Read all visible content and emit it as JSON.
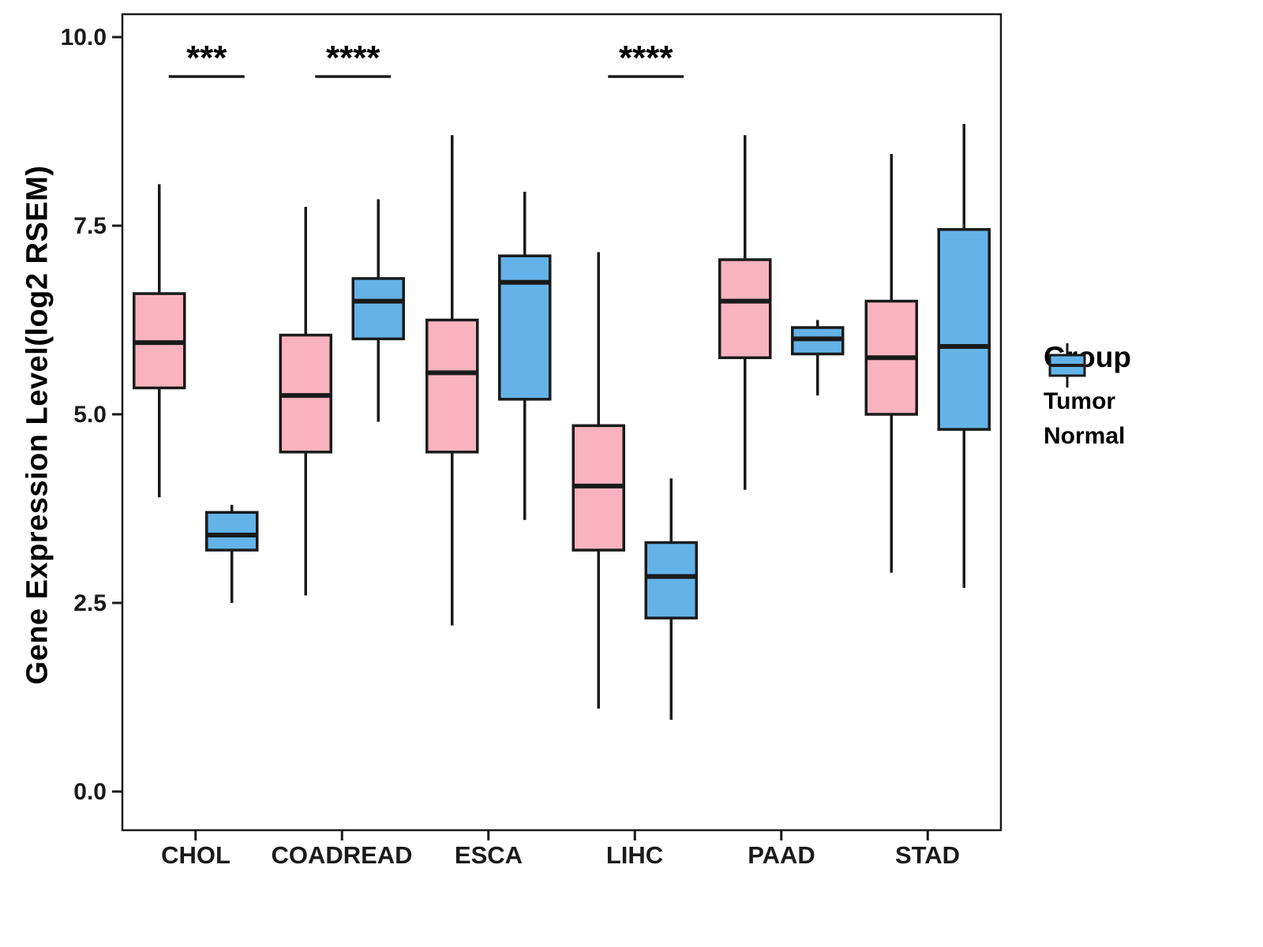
{
  "chart_data": {
    "type": "boxplot",
    "title": "",
    "xlabel": "",
    "ylabel": "Gene Expression Level(log2 RSEM)",
    "ylim": [
      0,
      10
    ],
    "grid": false,
    "y_ticks": [
      "0.0",
      "2.5",
      "5.0",
      "7.5",
      "10.0"
    ],
    "y_tick_values": [
      0,
      2.5,
      5,
      7.5,
      10
    ],
    "categories": [
      "CHOL",
      "COADREAD",
      "ESCA",
      "LIHC",
      "PAAD",
      "STAD"
    ],
    "legend": {
      "title": "Group",
      "position": "right",
      "entries": [
        {
          "label": "Tumor",
          "color": "#F9B3C0"
        },
        {
          "label": "Normal",
          "color": "#63B3E8"
        }
      ]
    },
    "series": [
      {
        "name": "Tumor",
        "color": "#F9B3C0",
        "boxes": [
          {
            "category": "CHOL",
            "whisker_low": 3.9,
            "q1": 5.35,
            "median": 5.95,
            "q3": 6.6,
            "whisker_high": 8.05
          },
          {
            "category": "COADREAD",
            "whisker_low": 2.6,
            "q1": 4.5,
            "median": 5.25,
            "q3": 6.05,
            "whisker_high": 7.75
          },
          {
            "category": "ESCA",
            "whisker_low": 2.2,
            "q1": 4.5,
            "median": 5.55,
            "q3": 6.25,
            "whisker_high": 8.7
          },
          {
            "category": "LIHC",
            "whisker_low": 1.1,
            "q1": 3.2,
            "median": 4.05,
            "q3": 4.85,
            "whisker_high": 7.15
          },
          {
            "category": "PAAD",
            "whisker_low": 4.0,
            "q1": 5.75,
            "median": 6.5,
            "q3": 7.05,
            "whisker_high": 8.7
          },
          {
            "category": "STAD",
            "whisker_low": 2.9,
            "q1": 5.0,
            "median": 5.75,
            "q3": 6.5,
            "whisker_high": 8.45
          }
        ]
      },
      {
        "name": "Normal",
        "color": "#63B3E8",
        "boxes": [
          {
            "category": "CHOL",
            "whisker_low": 2.5,
            "q1": 3.2,
            "median": 3.4,
            "q3": 3.7,
            "whisker_high": 3.8
          },
          {
            "category": "COADREAD",
            "whisker_low": 4.9,
            "q1": 6.0,
            "median": 6.5,
            "q3": 6.8,
            "whisker_high": 7.85
          },
          {
            "category": "ESCA",
            "whisker_low": 3.6,
            "q1": 5.2,
            "median": 6.75,
            "q3": 7.1,
            "whisker_high": 7.95
          },
          {
            "category": "LIHC",
            "whisker_low": 0.95,
            "q1": 2.3,
            "median": 2.85,
            "q3": 3.3,
            "whisker_high": 4.15
          },
          {
            "category": "PAAD",
            "whisker_low": 5.25,
            "q1": 5.8,
            "median": 6.0,
            "q3": 6.15,
            "whisker_high": 6.25
          },
          {
            "category": "STAD",
            "whisker_low": 2.7,
            "q1": 4.8,
            "median": 5.9,
            "q3": 7.45,
            "whisker_high": 8.85
          }
        ]
      }
    ],
    "significance": [
      {
        "category": "CHOL",
        "label": "***"
      },
      {
        "category": "COADREAD",
        "label": "****"
      },
      {
        "category": "LIHC",
        "label": "****"
      }
    ]
  }
}
